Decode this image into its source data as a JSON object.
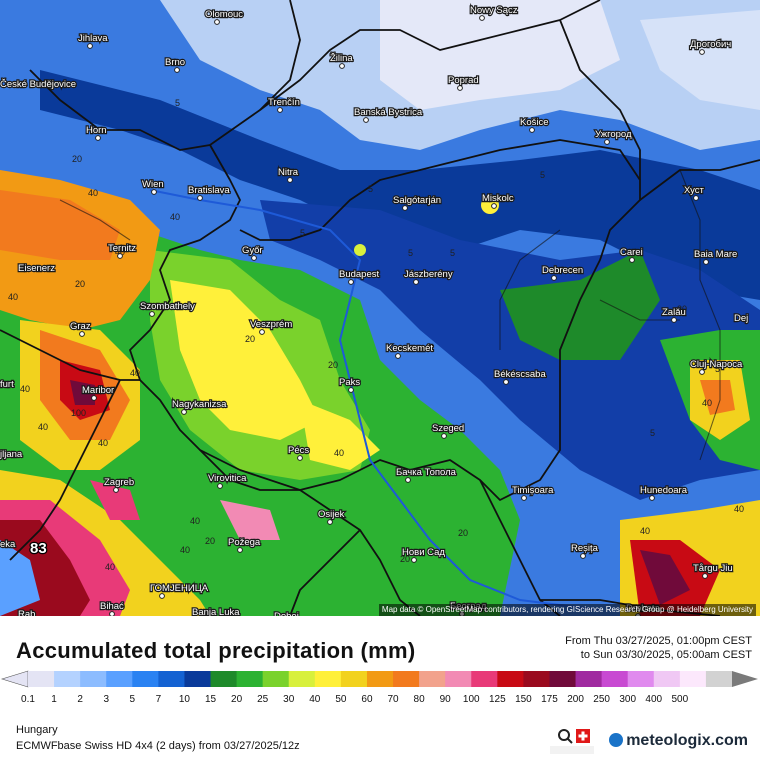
{
  "map": {
    "attribution": "Map data © OpenStreetMap contributors, rendering GIScience Research Group @ Heidelberg University",
    "max_value": "83",
    "cities": [
      {
        "name": "Olomouc"
      },
      {
        "name": "Nowy Sącz"
      },
      {
        "name": "Jihlava"
      },
      {
        "name": "Дрогобич"
      },
      {
        "name": "Brno"
      },
      {
        "name": "Žilina"
      },
      {
        "name": "Poprad"
      },
      {
        "name": "České Budějovice"
      },
      {
        "name": "Trenčín"
      },
      {
        "name": "Banská Bystrica"
      },
      {
        "name": "Košice"
      },
      {
        "name": "Ужгород"
      },
      {
        "name": "Horn"
      },
      {
        "name": "Nitra"
      },
      {
        "name": "Хуст"
      },
      {
        "name": "Wien"
      },
      {
        "name": "Bratislava"
      },
      {
        "name": "Salgótarján"
      },
      {
        "name": "Miskolc"
      },
      {
        "name": "Ternitz"
      },
      {
        "name": "Győr"
      },
      {
        "name": "Carei"
      },
      {
        "name": "Baia Mare"
      },
      {
        "name": "Eisenerz"
      },
      {
        "name": "Budapest"
      },
      {
        "name": "Jászberény"
      },
      {
        "name": "Debrecen"
      },
      {
        "name": "Szombathely"
      },
      {
        "name": "Zalău"
      },
      {
        "name": "Graz"
      },
      {
        "name": "Veszprém"
      },
      {
        "name": "Dej"
      },
      {
        "name": "Kecskemét"
      },
      {
        "name": "Cluj-Napoca"
      },
      {
        "name": "Paks"
      },
      {
        "name": "Békéscsaba"
      },
      {
        "name": "Maribor"
      },
      {
        "name": "Nagykanizsa"
      },
      {
        "name": "Szeged"
      },
      {
        "name": "Pécs"
      },
      {
        "name": "Бачка Топола"
      },
      {
        "name": "Zagreb"
      },
      {
        "name": "Virovitica"
      },
      {
        "name": "Timișoara"
      },
      {
        "name": "Hunedoara"
      },
      {
        "name": "Osijek"
      },
      {
        "name": "Požega"
      },
      {
        "name": "Reșița"
      },
      {
        "name": "Нови Сад"
      },
      {
        "name": "Tårgu Jiu"
      },
      {
        "name": "ГОМЈЕНИЦА"
      },
      {
        "name": "Bihać"
      },
      {
        "name": "Banja Luka"
      },
      {
        "name": "Београд"
      },
      {
        "name": "Drobeta"
      },
      {
        "name": "Doboj"
      },
      {
        "name": "Rab"
      },
      {
        "name": "jljana"
      },
      {
        "name": "furt"
      },
      {
        "name": "eka"
      }
    ]
  },
  "legend": {
    "title": "Accumulated total precipitation (mm)",
    "period_from": "From Thu 03/27/2025, 01:00pm CEST",
    "period_to": "to Sun 03/30/2025, 05:00am CEST",
    "region": "Hungary",
    "model": "ECMWFbase Swiss HD 4x4 (2 days) from  03/27/2025/12z",
    "brand": "meteologix.com",
    "scale_labels": [
      "0.1",
      "1",
      "2",
      "3",
      "5",
      "7",
      "10",
      "15",
      "20",
      "25",
      "30",
      "40",
      "50",
      "60",
      "70",
      "80",
      "90",
      "100",
      "125",
      "150",
      "175",
      "200",
      "250",
      "300",
      "400",
      "500"
    ],
    "scale_colors": [
      "#e4e4f4",
      "#b4d2ff",
      "#8cbcff",
      "#5aa0ff",
      "#2a82f2",
      "#1462d2",
      "#0a3a9a",
      "#1e8a2a",
      "#2cb232",
      "#7ad22c",
      "#d8f03c",
      "#fff03a",
      "#f2d21e",
      "#f29a14",
      "#f27a1e",
      "#f2a28c",
      "#f28ab4",
      "#e83a78",
      "#c80a14",
      "#9a0a1e",
      "#700a3a",
      "#a02aa0",
      "#c84ad2",
      "#e08aee",
      "#f0c8f4",
      "#fce8fc",
      "#d2d2d2"
    ]
  }
}
